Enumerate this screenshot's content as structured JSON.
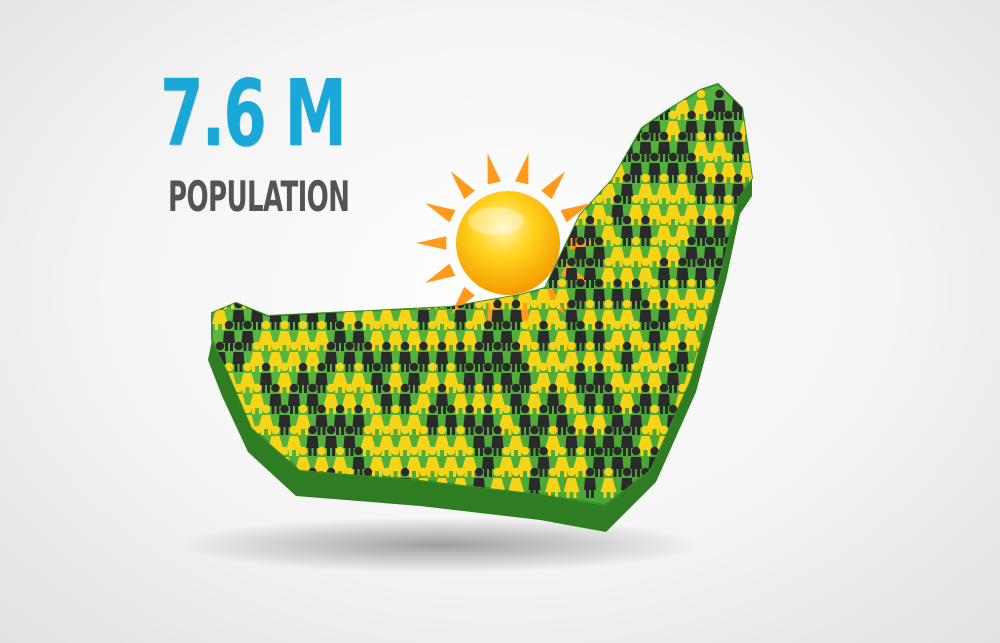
{
  "stat": {
    "value": "7.6 M",
    "label": "POPULATION"
  },
  "colors": {
    "value_text": "#19a8d8",
    "label_text": "#545454",
    "land_top": "#4fae3a",
    "land_side": "#2f7d22",
    "person_yellow": "#f7d417",
    "person_dark": "#2a2a2a",
    "sun": "#ffc21a",
    "sun_rays": "#ff9a1a"
  },
  "icons": [
    "sun-icon",
    "map-shape",
    "person-icon"
  ]
}
